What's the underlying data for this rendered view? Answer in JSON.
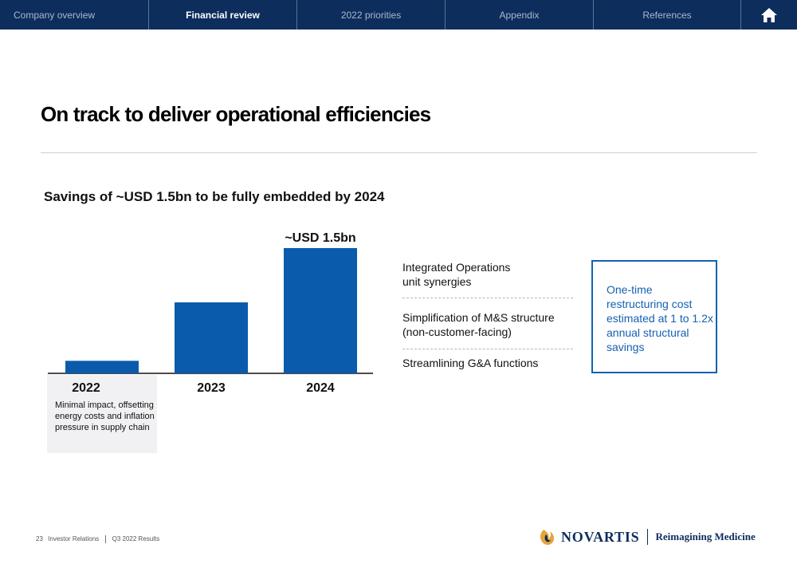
{
  "nav": {
    "tabs": [
      {
        "label": "Company overview"
      },
      {
        "label": "Financial review"
      },
      {
        "label": "2022 priorities"
      },
      {
        "label": "Appendix"
      },
      {
        "label": "References"
      }
    ],
    "active_index": 1
  },
  "slide": {
    "title": "On track to deliver operational efficiencies",
    "subtitle": "Savings of ~USD 1.5bn to be fully embedded by 2024",
    "callout": "Minimal impact, offsetting energy costs and inflation pressure in supply chain",
    "savings_components": [
      {
        "line1": "Integrated Operations",
        "line2": "unit synergies"
      },
      {
        "line1": "Simplification of M&S structure",
        "line2": "(non-customer-facing)"
      },
      {
        "line1": "Streamlining G&A functions",
        "line2": ""
      }
    ],
    "note_box": "One-time restructuring cost estimated at 1 to 1.2x annual structural savings"
  },
  "chart_data": {
    "type": "bar",
    "title": "Savings of ~USD 1.5bn to be fully embedded by 2024",
    "categories": [
      "2022",
      "2023",
      "2024"
    ],
    "values": [
      0.15,
      0.85,
      1.5
    ],
    "data_labels": [
      "",
      "",
      "~USD 1.5bn"
    ],
    "unit": "USD bn",
    "ylim": [
      0,
      1.5
    ],
    "xlabel": "",
    "ylabel": "",
    "grid": false,
    "bar_color": "#0a5bab"
  },
  "footer": {
    "page_number": "23",
    "section": "Investor Relations",
    "deck": "Q3 2022 Results"
  },
  "brand": {
    "name": "NOVARTIS",
    "tagline": "Reimagining Medicine",
    "navy": "#0d2d5c",
    "blue": "#1560b0",
    "orange": "#e8a33a"
  }
}
